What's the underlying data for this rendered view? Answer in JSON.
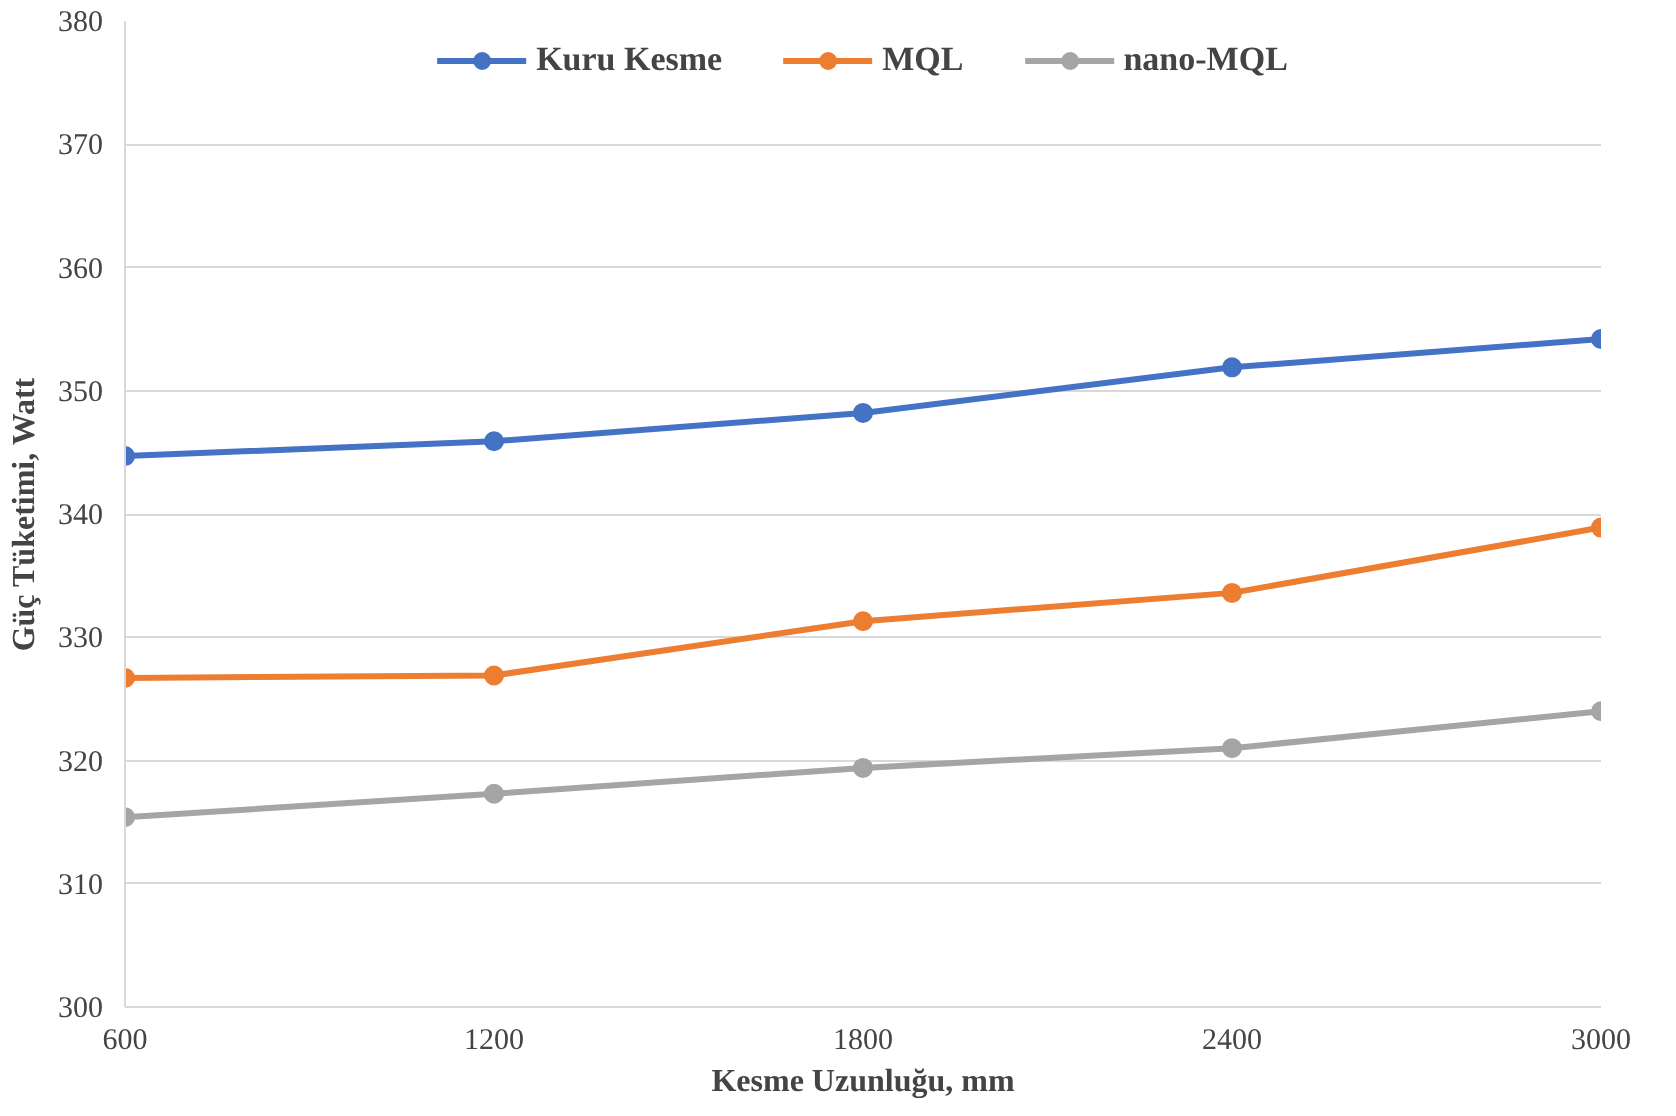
{
  "chart_data": {
    "type": "line",
    "xlabel": "Kesme Uzunluğu, mm",
    "ylabel": "Güç Tüketimi, Watt",
    "x": [
      600,
      1200,
      1800,
      2400,
      3000
    ],
    "series": [
      {
        "name": "Kuru Kesme",
        "color": "#4472c4",
        "values": [
          344.7,
          345.9,
          348.2,
          351.9,
          354.2
        ]
      },
      {
        "name": "MQL",
        "color": "#ed7d31",
        "values": [
          326.7,
          326.9,
          331.3,
          333.6,
          338.9
        ]
      },
      {
        "name": "nano-MQL",
        "color": "#a5a5a5",
        "values": [
          315.4,
          317.3,
          319.4,
          321.0,
          324.0
        ]
      }
    ],
    "xlim": [
      600,
      3000
    ],
    "xticks": [
      600,
      1200,
      1800,
      2400,
      3000
    ],
    "ylim": [
      300,
      380
    ],
    "yticks": [
      300,
      310,
      320,
      330,
      340,
      350,
      360,
      370,
      380
    ],
    "grid": "y",
    "legend": "top",
    "marker": "circle",
    "line_style": "solid"
  }
}
